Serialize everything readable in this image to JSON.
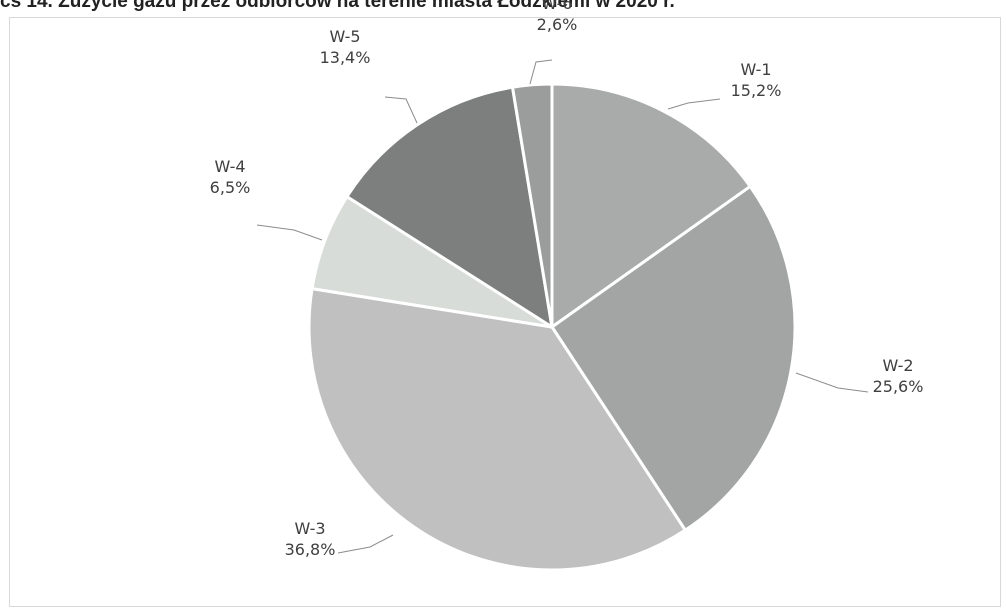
{
  "chart_data": {
    "type": "pie",
    "title": "cs 14. Zużycie gazu przez odbiorców na terenie miasta Łódzkiemi w 2020 r.",
    "labels": [
      "W-1",
      "W-2",
      "W-3",
      "W-4",
      "W-5",
      "W-6"
    ],
    "values": [
      15.2,
      25.6,
      36.8,
      6.5,
      13.4,
      2.6
    ],
    "value_labels": [
      "15,2%",
      "25,6%",
      "36,8%",
      "6,5%",
      "13,4%",
      "2,6%"
    ],
    "colors": [
      "#a9aaaa",
      "#a3a5a5",
      "#c0c0c0",
      "#d7dcd8",
      "#7d7f7f",
      "#9b9d9d"
    ],
    "start_angle": "12 o'clock",
    "direction": "clockwise",
    "legend": "none"
  }
}
